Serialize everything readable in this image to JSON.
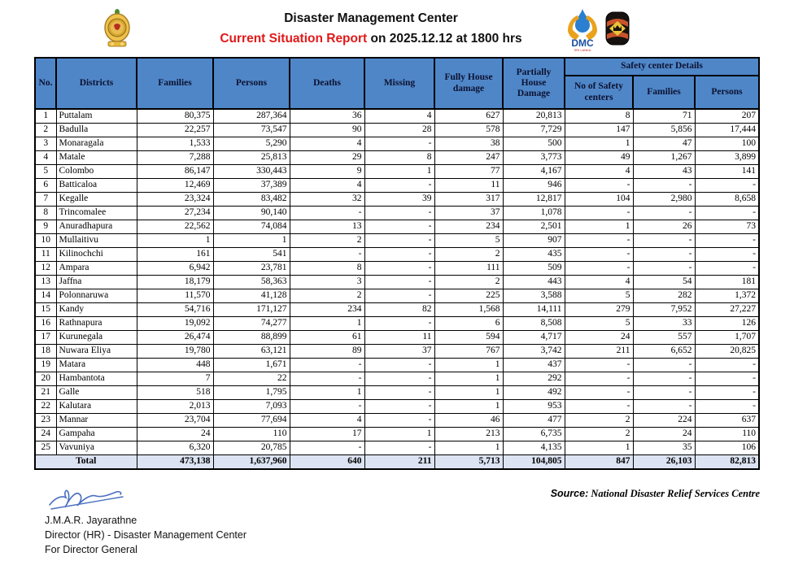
{
  "header": {
    "title": "Disaster Management Center",
    "subtitle_red": "Current Situation Report",
    "subtitle_rest": " on 2025.12.12 at 1800 hrs",
    "accent_red": "#e11919",
    "header_blue": "#4f86c8",
    "total_row_bg": "#dce3f2"
  },
  "logos": {
    "emblem": "sri-lanka-national-emblem",
    "dmc": "disaster-management-center-logo",
    "dmc_text": "DMC",
    "dmc_subtext": "SRI LANKA",
    "crest": "dark-crest-logo"
  },
  "table": {
    "headers": {
      "no": "No.",
      "districts": "Districts",
      "families": "Families",
      "persons": "Persons",
      "deaths": "Deaths",
      "missing": "Missing",
      "fully": "Fully House damage",
      "partially": "Partially House Damage",
      "safety_group": "Safety center Details",
      "safety_no": "No of Safety centers",
      "safety_families": "Families",
      "safety_persons": "Persons"
    },
    "rows": [
      [
        "1",
        "Puttalam",
        "80,375",
        "287,364",
        "36",
        "4",
        "627",
        "20,813",
        "8",
        "71",
        "207"
      ],
      [
        "2",
        "Badulla",
        "22,257",
        "73,547",
        "90",
        "28",
        "578",
        "7,729",
        "147",
        "5,856",
        "17,444"
      ],
      [
        "3",
        "Monaragala",
        "1,533",
        "5,290",
        "4",
        "-",
        "38",
        "500",
        "1",
        "47",
        "100"
      ],
      [
        "4",
        "Matale",
        "7,288",
        "25,813",
        "29",
        "8",
        "247",
        "3,773",
        "49",
        "1,267",
        "3,899"
      ],
      [
        "5",
        "Colombo",
        "86,147",
        "330,443",
        "9",
        "1",
        "77",
        "4,167",
        "4",
        "43",
        "141"
      ],
      [
        "6",
        "Batticaloa",
        "12,469",
        "37,389",
        "4",
        "-",
        "11",
        "946",
        "-",
        "-",
        "-"
      ],
      [
        "7",
        "Kegalle",
        "23,324",
        "83,482",
        "32",
        "39",
        "317",
        "12,817",
        "104",
        "2,980",
        "8,658"
      ],
      [
        "8",
        "Trincomalee",
        "27,234",
        "90,140",
        "-",
        "-",
        "37",
        "1,078",
        "-",
        "-",
        "-"
      ],
      [
        "9",
        "Anuradhapura",
        "22,562",
        "74,084",
        "13",
        "-",
        "234",
        "2,501",
        "1",
        "26",
        "73"
      ],
      [
        "10",
        "Mullaitivu",
        "1",
        "1",
        "2",
        "-",
        "5",
        "907",
        "-",
        "-",
        "-"
      ],
      [
        "11",
        "Kilinochchi",
        "161",
        "541",
        "-",
        "-",
        "2",
        "435",
        "-",
        "-",
        "-"
      ],
      [
        "12",
        "Ampara",
        "6,942",
        "23,781",
        "8",
        "-",
        "111",
        "509",
        "-",
        "-",
        "-"
      ],
      [
        "13",
        "Jaffna",
        "18,179",
        "58,363",
        "3",
        "-",
        "2",
        "443",
        "4",
        "54",
        "181"
      ],
      [
        "14",
        "Polonnaruwa",
        "11,570",
        "41,128",
        "2",
        "-",
        "225",
        "3,588",
        "5",
        "282",
        "1,372"
      ],
      [
        "15",
        "Kandy",
        "54,716",
        "171,127",
        "234",
        "82",
        "1,568",
        "14,111",
        "279",
        "7,952",
        "27,227"
      ],
      [
        "16",
        "Rathnapura",
        "19,092",
        "74,277",
        "1",
        "-",
        "6",
        "8,508",
        "5",
        "33",
        "126"
      ],
      [
        "17",
        "Kurunegala",
        "26,474",
        "88,899",
        "61",
        "11",
        "594",
        "4,717",
        "24",
        "557",
        "1,707"
      ],
      [
        "18",
        "Nuwara Eliya",
        "19,780",
        "63,121",
        "89",
        "37",
        "767",
        "3,742",
        "211",
        "6,652",
        "20,825"
      ],
      [
        "19",
        "Matara",
        "448",
        "1,671",
        "-",
        "-",
        "1",
        "437",
        "-",
        "-",
        "-"
      ],
      [
        "20",
        "Hambantota",
        "7",
        "22",
        "-",
        "-",
        "1",
        "292",
        "-",
        "-",
        "-"
      ],
      [
        "21",
        "Galle",
        "518",
        "1,795",
        "1",
        "-",
        "1",
        "492",
        "-",
        "-",
        "-"
      ],
      [
        "22",
        "Kalutara",
        "2,013",
        "7,093",
        "-",
        "-",
        "1",
        "953",
        "-",
        "-",
        "-"
      ],
      [
        "23",
        "Mannar",
        "23,704",
        "77,694",
        "4",
        "-",
        "46",
        "477",
        "2",
        "224",
        "637"
      ],
      [
        "24",
        "Gampaha",
        "24",
        "110",
        "17",
        "1",
        "213",
        "6,735",
        "2",
        "24",
        "110"
      ],
      [
        "25",
        "Vavuniya",
        "6,320",
        "20,785",
        "-",
        "-",
        "1",
        "4,135",
        "1",
        "35",
        "106"
      ]
    ],
    "total": [
      "Total",
      "473,138",
      "1,637,960",
      "640",
      "211",
      "5,713",
      "104,805",
      "847",
      "26,103",
      "82,813"
    ]
  },
  "footer": {
    "source_label": "Source:",
    "source_value": "National Disaster Relief Services Centre",
    "signatory_name": "J.M.A.R. Jayarathne",
    "signatory_title": "Director (HR) - Disaster Management Center",
    "signatory_for": "For Director General"
  }
}
